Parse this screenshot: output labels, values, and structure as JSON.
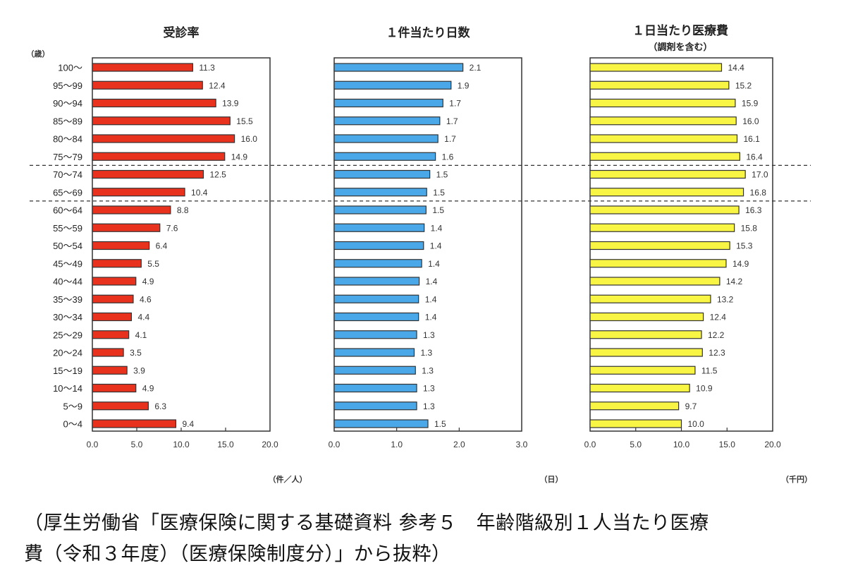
{
  "chart_data": [
    {
      "type": "bar",
      "orientation": "horizontal",
      "title": "受診率",
      "subtitle": "",
      "categories_label": "（歳）",
      "categories": [
        "100〜",
        "95〜99",
        "90〜94",
        "85〜89",
        "80〜84",
        "75〜79",
        "70〜74",
        "65〜69",
        "60〜64",
        "55〜59",
        "50〜54",
        "45〜49",
        "40〜44",
        "35〜39",
        "30〜34",
        "25〜29",
        "20〜24",
        "15〜19",
        "10〜14",
        "5〜9",
        "0〜4"
      ],
      "values": [
        11.3,
        12.4,
        13.9,
        15.5,
        16.0,
        14.9,
        12.5,
        10.4,
        8.8,
        7.6,
        6.4,
        5.5,
        4.9,
        4.6,
        4.4,
        4.1,
        3.5,
        3.9,
        4.9,
        6.3,
        9.4
      ],
      "value_labels": [
        "11.3",
        "12.4",
        "13.9",
        "15.5",
        "16.0",
        "14.9",
        "12.5",
        "10.4",
        "8.8",
        "7.6",
        "6.4",
        "5.5",
        "4.9",
        "4.6",
        "4.4",
        "4.1",
        "3.5",
        "3.9",
        "4.9",
        "6.3",
        "9.4"
      ],
      "xlim": [
        0,
        20
      ],
      "xticks": [
        "0.0",
        "5.0",
        "10.0",
        "15.0",
        "20.0"
      ],
      "xlabel": "（件／人）",
      "ylabel": "",
      "color": "#e8321e",
      "grid": false
    },
    {
      "type": "bar",
      "orientation": "horizontal",
      "title": "１件当たり日数",
      "subtitle": "",
      "categories": [
        "100〜",
        "95〜99",
        "90〜94",
        "85〜89",
        "80〜84",
        "75〜79",
        "70〜74",
        "65〜69",
        "60〜64",
        "55〜59",
        "50〜54",
        "45〜49",
        "40〜44",
        "35〜39",
        "30〜34",
        "25〜29",
        "20〜24",
        "15〜19",
        "10〜14",
        "5〜9",
        "0〜4"
      ],
      "values": [
        2.06,
        1.87,
        1.74,
        1.69,
        1.66,
        1.62,
        1.53,
        1.48,
        1.47,
        1.44,
        1.43,
        1.4,
        1.36,
        1.35,
        1.35,
        1.32,
        1.28,
        1.3,
        1.32,
        1.32,
        1.5
      ],
      "value_labels": [
        "2.1",
        "1.9",
        "1.7",
        "1.7",
        "1.7",
        "1.6",
        "1.5",
        "1.5",
        "1.5",
        "1.4",
        "1.4",
        "1.4",
        "1.4",
        "1.4",
        "1.4",
        "1.3",
        "1.3",
        "1.3",
        "1.3",
        "1.3",
        "1.5"
      ],
      "xlim": [
        0,
        3
      ],
      "xticks": [
        "0.0",
        "1.0",
        "2.0",
        "3.0"
      ],
      "xlabel": "（日）",
      "ylabel": "",
      "color": "#4aa8e8",
      "grid": false
    },
    {
      "type": "bar",
      "orientation": "horizontal",
      "title": "１日当たり医療費",
      "subtitle": "（調剤を含む）",
      "categories": [
        "100〜",
        "95〜99",
        "90〜94",
        "85〜89",
        "80〜84",
        "75〜79",
        "70〜74",
        "65〜69",
        "60〜64",
        "55〜59",
        "50〜54",
        "45〜49",
        "40〜44",
        "35〜39",
        "30〜34",
        "25〜29",
        "20〜24",
        "15〜19",
        "10〜14",
        "5〜9",
        "0〜4"
      ],
      "values": [
        14.4,
        15.2,
        15.9,
        16.0,
        16.1,
        16.4,
        17.0,
        16.8,
        16.3,
        15.8,
        15.3,
        14.9,
        14.2,
        13.2,
        12.4,
        12.2,
        12.3,
        11.5,
        10.9,
        9.7,
        10.0
      ],
      "value_labels": [
        "14.4",
        "15.2",
        "15.9",
        "16.0",
        "16.1",
        "16.4",
        "17.0",
        "16.8",
        "16.3",
        "15.8",
        "15.3",
        "14.9",
        "14.2",
        "13.2",
        "12.4",
        "12.2",
        "12.3",
        "11.5",
        "10.9",
        "9.7",
        "10.0"
      ],
      "xlim": [
        0,
        20
      ],
      "xticks": [
        "0.0",
        "5.0",
        "10.0",
        "15.0",
        "20.0"
      ],
      "xlabel": "（千円）",
      "ylabel": "",
      "color": "#f8f545",
      "grid": false
    }
  ],
  "separators_after_categories": [
    "75〜79",
    "65〜69"
  ],
  "caption": {
    "line1": "（厚生労働省「医療保険に関する基礎資料 参考５　年齢階級別１人当たり医療",
    "line2": "費（令和３年度）（医療保険制度分）」から抜粋）"
  }
}
